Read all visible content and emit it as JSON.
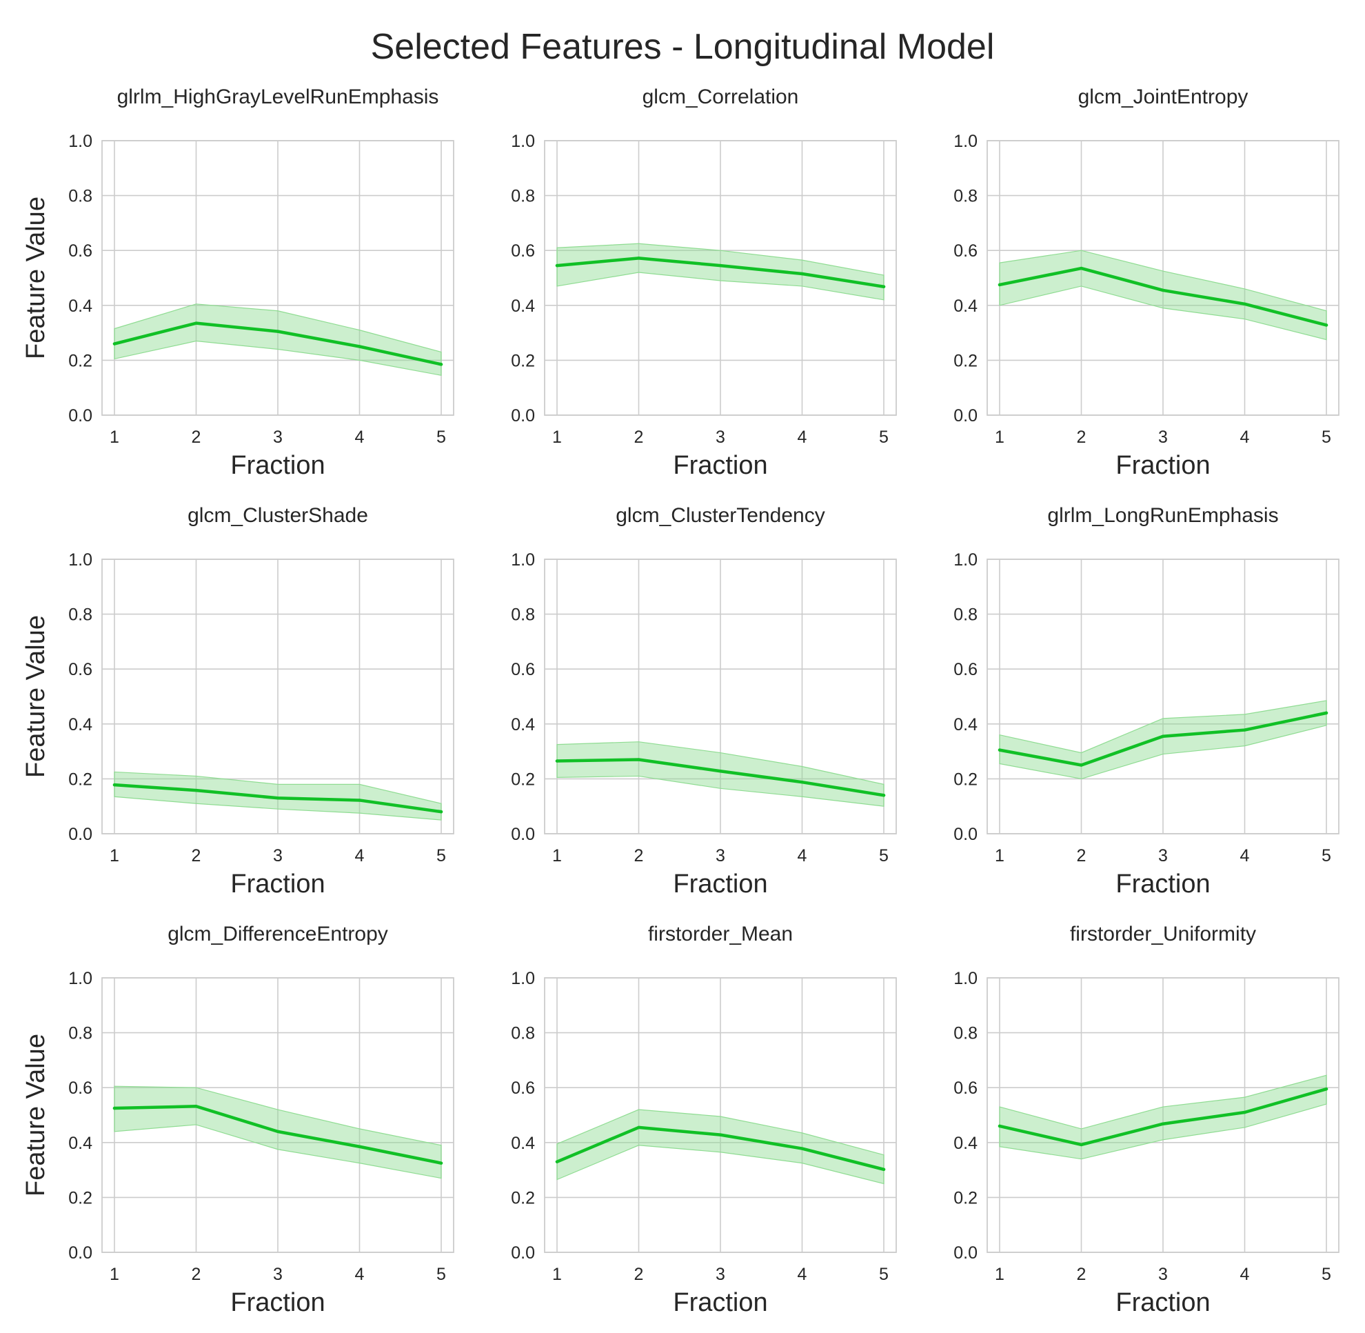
{
  "title": "Selected Features - Longitudinal Model",
  "style": {
    "line_color": "#11c026",
    "band_color": "#8fdc92",
    "grid_color": "#cccccc",
    "text_color": "#262626"
  },
  "chart_data": [
    {
      "type": "line",
      "title": "glrlm_HighGrayLevelRunEmphasis",
      "xlabel": "Fraction",
      "ylabel": "Feature Value",
      "x": [
        1,
        2,
        3,
        4,
        5
      ],
      "xticks": [
        "1",
        "2",
        "3",
        "4",
        "5"
      ],
      "ylim": [
        0,
        1
      ],
      "yticks": [
        "0.0",
        "0.2",
        "0.4",
        "0.6",
        "0.8",
        "1.0"
      ],
      "grid": true,
      "mean": [
        0.26,
        0.335,
        0.305,
        0.25,
        0.185
      ],
      "lower": [
        0.205,
        0.27,
        0.24,
        0.2,
        0.145
      ],
      "upper": [
        0.315,
        0.405,
        0.38,
        0.31,
        0.23
      ]
    },
    {
      "type": "line",
      "title": "glcm_Correlation",
      "xlabel": "Fraction",
      "ylabel": "",
      "x": [
        1,
        2,
        3,
        4,
        5
      ],
      "xticks": [
        "1",
        "2",
        "3",
        "4",
        "5"
      ],
      "ylim": [
        0,
        1
      ],
      "yticks": [
        "0.0",
        "0.2",
        "0.4",
        "0.6",
        "0.8",
        "1.0"
      ],
      "grid": true,
      "mean": [
        0.545,
        0.572,
        0.545,
        0.515,
        0.468
      ],
      "lower": [
        0.47,
        0.52,
        0.49,
        0.47,
        0.42
      ],
      "upper": [
        0.61,
        0.625,
        0.6,
        0.565,
        0.51
      ]
    },
    {
      "type": "line",
      "title": "glcm_JointEntropy",
      "xlabel": "Fraction",
      "ylabel": "",
      "x": [
        1,
        2,
        3,
        4,
        5
      ],
      "xticks": [
        "1",
        "2",
        "3",
        "4",
        "5"
      ],
      "ylim": [
        0,
        1
      ],
      "yticks": [
        "0.0",
        "0.2",
        "0.4",
        "0.6",
        "0.8",
        "1.0"
      ],
      "grid": true,
      "mean": [
        0.475,
        0.535,
        0.455,
        0.405,
        0.328
      ],
      "lower": [
        0.4,
        0.47,
        0.39,
        0.35,
        0.275
      ],
      "upper": [
        0.555,
        0.6,
        0.525,
        0.46,
        0.38
      ]
    },
    {
      "type": "line",
      "title": "glcm_ClusterShade",
      "xlabel": "Fraction",
      "ylabel": "Feature Value",
      "x": [
        1,
        2,
        3,
        4,
        5
      ],
      "xticks": [
        "1",
        "2",
        "3",
        "4",
        "5"
      ],
      "ylim": [
        0,
        1
      ],
      "yticks": [
        "0.0",
        "0.2",
        "0.4",
        "0.6",
        "0.8",
        "1.0"
      ],
      "grid": true,
      "mean": [
        0.178,
        0.158,
        0.13,
        0.122,
        0.08
      ],
      "lower": [
        0.135,
        0.11,
        0.09,
        0.075,
        0.05
      ],
      "upper": [
        0.225,
        0.21,
        0.18,
        0.18,
        0.11
      ]
    },
    {
      "type": "line",
      "title": "glcm_ClusterTendency",
      "xlabel": "Fraction",
      "ylabel": "",
      "x": [
        1,
        2,
        3,
        4,
        5
      ],
      "xticks": [
        "1",
        "2",
        "3",
        "4",
        "5"
      ],
      "ylim": [
        0,
        1
      ],
      "yticks": [
        "0.0",
        "0.2",
        "0.4",
        "0.6",
        "0.8",
        "1.0"
      ],
      "grid": true,
      "mean": [
        0.265,
        0.27,
        0.228,
        0.188,
        0.14
      ],
      "lower": [
        0.205,
        0.21,
        0.165,
        0.135,
        0.1
      ],
      "upper": [
        0.325,
        0.335,
        0.295,
        0.245,
        0.18
      ]
    },
    {
      "type": "line",
      "title": "glrlm_LongRunEmphasis",
      "xlabel": "Fraction",
      "ylabel": "",
      "x": [
        1,
        2,
        3,
        4,
        5
      ],
      "xticks": [
        "1",
        "2",
        "3",
        "4",
        "5"
      ],
      "ylim": [
        0,
        1
      ],
      "yticks": [
        "0.0",
        "0.2",
        "0.4",
        "0.6",
        "0.8",
        "1.0"
      ],
      "grid": true,
      "mean": [
        0.305,
        0.25,
        0.355,
        0.378,
        0.44
      ],
      "lower": [
        0.255,
        0.2,
        0.29,
        0.32,
        0.395
      ],
      "upper": [
        0.36,
        0.295,
        0.42,
        0.435,
        0.485
      ]
    },
    {
      "type": "line",
      "title": "glcm_DifferenceEntropy",
      "xlabel": "Fraction",
      "ylabel": "Feature Value",
      "x": [
        1,
        2,
        3,
        4,
        5
      ],
      "xticks": [
        "1",
        "2",
        "3",
        "4",
        "5"
      ],
      "ylim": [
        0,
        1
      ],
      "yticks": [
        "0.0",
        "0.2",
        "0.4",
        "0.6",
        "0.8",
        "1.0"
      ],
      "grid": true,
      "mean": [
        0.525,
        0.532,
        0.44,
        0.385,
        0.325
      ],
      "lower": [
        0.44,
        0.465,
        0.375,
        0.325,
        0.27
      ],
      "upper": [
        0.605,
        0.6,
        0.52,
        0.45,
        0.39
      ]
    },
    {
      "type": "line",
      "title": "firstorder_Mean",
      "xlabel": "Fraction",
      "ylabel": "",
      "x": [
        1,
        2,
        3,
        4,
        5
      ],
      "xticks": [
        "1",
        "2",
        "3",
        "4",
        "5"
      ],
      "ylim": [
        0,
        1
      ],
      "yticks": [
        "0.0",
        "0.2",
        "0.4",
        "0.6",
        "0.8",
        "1.0"
      ],
      "grid": true,
      "mean": [
        0.33,
        0.455,
        0.428,
        0.378,
        0.302
      ],
      "lower": [
        0.265,
        0.39,
        0.365,
        0.325,
        0.25
      ],
      "upper": [
        0.395,
        0.52,
        0.495,
        0.435,
        0.355
      ]
    },
    {
      "type": "line",
      "title": "firstorder_Uniformity",
      "xlabel": "Fraction",
      "ylabel": "",
      "x": [
        1,
        2,
        3,
        4,
        5
      ],
      "xticks": [
        "1",
        "2",
        "3",
        "4",
        "5"
      ],
      "ylim": [
        0,
        1
      ],
      "yticks": [
        "0.0",
        "0.2",
        "0.4",
        "0.6",
        "0.8",
        "1.0"
      ],
      "grid": true,
      "mean": [
        0.46,
        0.392,
        0.468,
        0.51,
        0.595
      ],
      "lower": [
        0.385,
        0.34,
        0.41,
        0.455,
        0.54
      ],
      "upper": [
        0.53,
        0.45,
        0.53,
        0.565,
        0.645
      ]
    }
  ]
}
